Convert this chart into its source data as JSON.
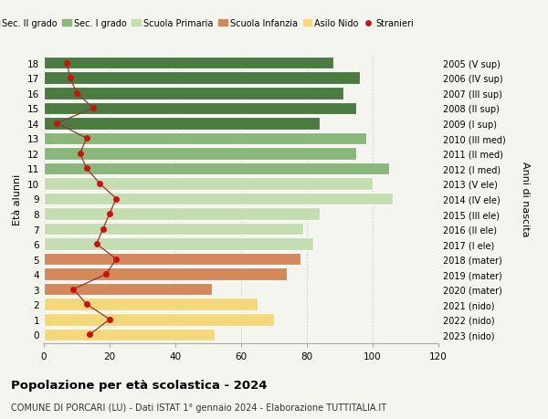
{
  "ages": [
    18,
    17,
    16,
    15,
    14,
    13,
    12,
    11,
    10,
    9,
    8,
    7,
    6,
    5,
    4,
    3,
    2,
    1,
    0
  ],
  "bar_values": [
    88,
    96,
    91,
    95,
    84,
    98,
    95,
    105,
    100,
    106,
    84,
    79,
    82,
    78,
    74,
    51,
    65,
    70,
    52
  ],
  "stranieri": [
    7,
    8,
    10,
    15,
    4,
    13,
    11,
    13,
    17,
    22,
    20,
    18,
    16,
    22,
    19,
    9,
    13,
    20,
    14
  ],
  "bar_colors": [
    "#4a7c3f",
    "#4a7c3f",
    "#4a7c3f",
    "#4a7c3f",
    "#4a7c3f",
    "#8ab87a",
    "#8ab87a",
    "#8ab87a",
    "#c5deb0",
    "#c5deb0",
    "#c5deb0",
    "#c5deb0",
    "#c5deb0",
    "#d4895a",
    "#d4895a",
    "#d4895a",
    "#f5d87a",
    "#f5d87a",
    "#f5d87a"
  ],
  "right_labels": [
    "2005 (V sup)",
    "2006 (IV sup)",
    "2007 (III sup)",
    "2008 (II sup)",
    "2009 (I sup)",
    "2010 (III med)",
    "2011 (II med)",
    "2012 (I med)",
    "2013 (V ele)",
    "2014 (IV ele)",
    "2015 (III ele)",
    "2016 (II ele)",
    "2017 (I ele)",
    "2018 (mater)",
    "2019 (mater)",
    "2020 (mater)",
    "2021 (nido)",
    "2022 (nido)",
    "2023 (nido)"
  ],
  "legend_labels": [
    "Sec. II grado",
    "Sec. I grado",
    "Scuola Primaria",
    "Scuola Infanzia",
    "Asilo Nido",
    "Stranieri"
  ],
  "legend_colors": [
    "#4a7c3f",
    "#8ab87a",
    "#c5deb0",
    "#d4895a",
    "#f5d87a",
    "#cc1111"
  ],
  "stranieri_color": "#cc1111",
  "stranieri_line_color": "#993333",
  "xlabel_vals": [
    0,
    20,
    40,
    60,
    80,
    100,
    120
  ],
  "xlim": [
    0,
    120
  ],
  "ylabel": "Età alunni",
  "right_ylabel": "Anni di nascita",
  "title": "Popolazione per età scolastica - 2024",
  "subtitle": "COMUNE DI PORCARI (LU) - Dati ISTAT 1° gennaio 2024 - Elaborazione TUTTITALIA.IT",
  "bg_color": "#f5f5f0",
  "bar_height": 0.82
}
